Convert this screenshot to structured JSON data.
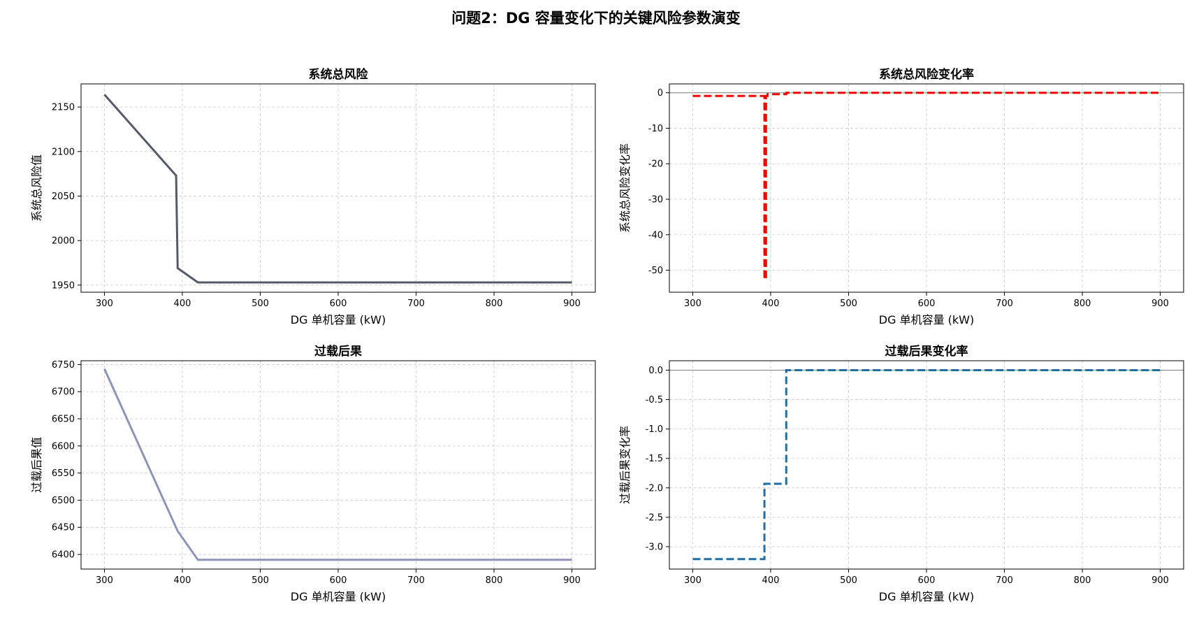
{
  "figure": {
    "title": "问题2：DG 容量变化下的关键风险参数演变"
  },
  "chart_data": [
    {
      "id": "p0",
      "type": "line",
      "title": "系统总风险",
      "xlabel": "DG 单机容量 (kW)",
      "ylabel": "系统总风险值",
      "xlim": [
        270,
        930
      ],
      "ylim": [
        1942,
        2176
      ],
      "xticks": [
        300,
        400,
        500,
        600,
        700,
        800,
        900
      ],
      "yticks": [
        1950,
        2000,
        2050,
        2100,
        2150
      ],
      "grid": true,
      "series": [
        {
          "color": "#555a6b",
          "style": "solid",
          "x": [
            300,
            392,
            394,
            420,
            900
          ],
          "y": [
            2164,
            2073,
            1969,
            1953,
            1953
          ]
        }
      ]
    },
    {
      "id": "p1",
      "type": "line",
      "title": "系统总风险变化率",
      "xlabel": "DG 单机容量 (kW)",
      "ylabel": "系统总风险变化率",
      "xlim": [
        270,
        930
      ],
      "ylim": [
        -56.2,
        2.5
      ],
      "xticks": [
        300,
        400,
        500,
        600,
        700,
        800,
        900
      ],
      "yticks": [
        0,
        -10,
        -20,
        -30,
        -40,
        -50
      ],
      "grid": true,
      "zero_line": true,
      "series": [
        {
          "color": "#ff0000",
          "style": "dashed",
          "x": [
            300,
            392,
            392,
            394,
            394,
            396,
            396,
            420,
            420,
            900
          ],
          "y": [
            -0.9,
            -0.9,
            -52.5,
            -52.5,
            -0.9,
            -0.9,
            -0.4,
            -0.4,
            0,
            0
          ]
        }
      ]
    },
    {
      "id": "p2",
      "type": "line",
      "title": "过载后果",
      "xlabel": "DG 单机容量 (kW)",
      "ylabel": "过载后果值",
      "xlim": [
        270,
        930
      ],
      "ylim": [
        6373,
        6757
      ],
      "xticks": [
        300,
        400,
        500,
        600,
        700,
        800,
        900
      ],
      "yticks": [
        6400,
        6450,
        6500,
        6550,
        6600,
        6650,
        6700,
        6750
      ],
      "grid": true,
      "series": [
        {
          "color": "#8e94b8",
          "style": "solid",
          "x": [
            300,
            394,
            420,
            900
          ],
          "y": [
            6742,
            6443,
            6390,
            6390
          ]
        }
      ]
    },
    {
      "id": "p3",
      "type": "line",
      "title": "过载后果变化率",
      "xlabel": "DG 单机容量 (kW)",
      "ylabel": "过载后果变化率",
      "xlim": [
        270,
        930
      ],
      "ylim": [
        -3.38,
        0.16
      ],
      "xticks": [
        300,
        400,
        500,
        600,
        700,
        800,
        900
      ],
      "yticks": [
        0.0,
        -0.5,
        -1.0,
        -1.5,
        -2.0,
        -2.5,
        -3.0
      ],
      "ytick_decimals": 1,
      "grid": true,
      "zero_line": true,
      "series": [
        {
          "color": "#1f6fa6",
          "style": "dashed",
          "x": [
            300,
            392,
            392,
            420,
            420,
            900
          ],
          "y": [
            -3.21,
            -3.21,
            -1.93,
            -1.93,
            0,
            0
          ]
        }
      ]
    }
  ]
}
